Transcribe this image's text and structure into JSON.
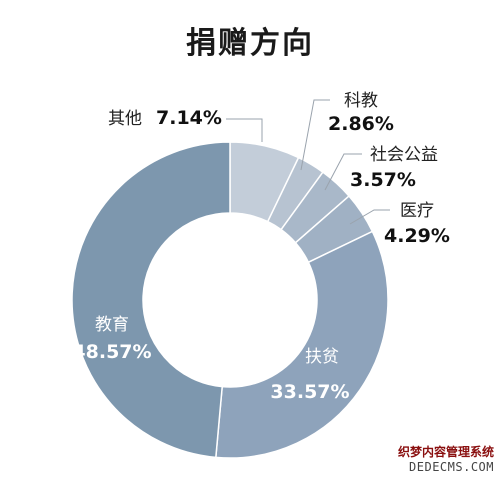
{
  "chart_data": {
    "type": "pie",
    "title": "捐赠方向",
    "donut": true,
    "categories": [
      "其他",
      "科教",
      "社会公益",
      "医疗",
      "扶贫",
      "教育"
    ],
    "values": [
      7.14,
      2.86,
      3.57,
      4.29,
      33.57,
      48.57
    ],
    "value_labels": [
      "7.14%",
      "2.86%",
      "3.57%",
      "4.29%",
      "33.57%",
      "48.57%"
    ],
    "colors": [
      "#c3cdd9",
      "#b7c3d1",
      "#a9b8c9",
      "#a0b1c4",
      "#8ea3bb",
      "#7d97ae"
    ],
    "legend": false
  },
  "watermark": {
    "line1": "织梦内容管理系统",
    "line2": "DEDECMS.COM"
  }
}
